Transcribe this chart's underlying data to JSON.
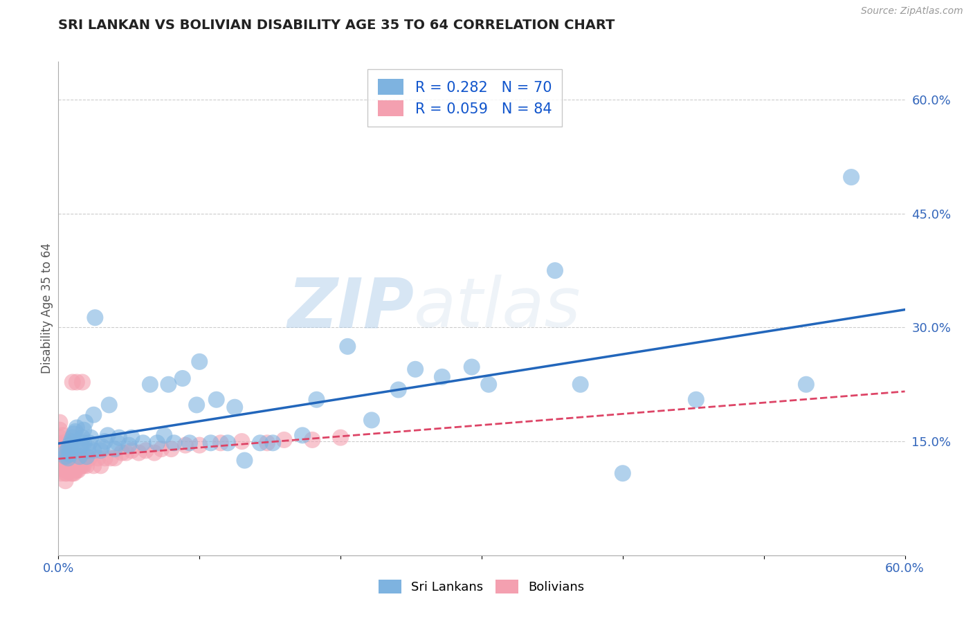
{
  "title": "SRI LANKAN VS BOLIVIAN DISABILITY AGE 35 TO 64 CORRELATION CHART",
  "source": "Source: ZipAtlas.com",
  "ylabel_label": "Disability Age 35 to 64",
  "x_min": 0.0,
  "x_max": 0.6,
  "y_min": 0.0,
  "y_max": 0.65,
  "y_ticks": [
    0.15,
    0.3,
    0.45,
    0.6
  ],
  "y_tick_labels": [
    "15.0%",
    "30.0%",
    "45.0%",
    "60.0%"
  ],
  "x_ticks": [
    0.0,
    0.1,
    0.2,
    0.3,
    0.4,
    0.5,
    0.6
  ],
  "x_tick_labels": [
    "0.0%",
    "",
    "",
    "",
    "",
    "",
    "60.0%"
  ],
  "sri_lankan_color": "#7EB3E0",
  "bolivian_color": "#F4A0B0",
  "sri_lankan_line_color": "#2266BB",
  "bolivian_line_color": "#DD4466",
  "background_color": "#FFFFFF",
  "grid_color": "#CCCCCC",
  "watermark_zip": "ZIP",
  "watermark_atlas": "atlas",
  "R_sri": 0.282,
  "N_sri": 70,
  "R_bol": 0.059,
  "N_bol": 84,
  "sri_lankan_x": [
    0.005,
    0.005,
    0.007,
    0.007,
    0.008,
    0.008,
    0.009,
    0.009,
    0.01,
    0.01,
    0.01,
    0.011,
    0.012,
    0.013,
    0.015,
    0.015,
    0.016,
    0.017,
    0.018,
    0.018,
    0.019,
    0.02,
    0.021,
    0.022,
    0.023,
    0.025,
    0.025,
    0.026,
    0.03,
    0.031,
    0.033,
    0.035,
    0.036,
    0.04,
    0.042,
    0.043,
    0.05,
    0.052,
    0.06,
    0.065,
    0.07,
    0.075,
    0.078,
    0.082,
    0.088,
    0.093,
    0.098,
    0.1,
    0.108,
    0.112,
    0.12,
    0.125,
    0.132,
    0.143,
    0.152,
    0.173,
    0.183,
    0.205,
    0.222,
    0.241,
    0.253,
    0.272,
    0.293,
    0.305,
    0.352,
    0.37,
    0.4,
    0.452,
    0.53,
    0.562
  ],
  "sri_lankan_y": [
    0.13,
    0.135,
    0.128,
    0.14,
    0.133,
    0.145,
    0.138,
    0.15,
    0.142,
    0.148,
    0.155,
    0.16,
    0.163,
    0.168,
    0.13,
    0.14,
    0.145,
    0.155,
    0.148,
    0.165,
    0.175,
    0.13,
    0.138,
    0.148,
    0.155,
    0.185,
    0.138,
    0.313,
    0.138,
    0.143,
    0.15,
    0.158,
    0.198,
    0.14,
    0.148,
    0.155,
    0.145,
    0.155,
    0.148,
    0.225,
    0.148,
    0.158,
    0.225,
    0.148,
    0.233,
    0.148,
    0.198,
    0.255,
    0.148,
    0.205,
    0.148,
    0.195,
    0.125,
    0.148,
    0.148,
    0.158,
    0.205,
    0.275,
    0.178,
    0.218,
    0.245,
    0.235,
    0.248,
    0.225,
    0.375,
    0.225,
    0.108,
    0.205,
    0.225,
    0.498
  ],
  "bolivian_x": [
    0.001,
    0.001,
    0.001,
    0.001,
    0.001,
    0.001,
    0.002,
    0.002,
    0.002,
    0.002,
    0.002,
    0.002,
    0.003,
    0.003,
    0.003,
    0.003,
    0.003,
    0.004,
    0.004,
    0.004,
    0.005,
    0.005,
    0.005,
    0.005,
    0.005,
    0.005,
    0.006,
    0.006,
    0.006,
    0.006,
    0.007,
    0.007,
    0.007,
    0.008,
    0.008,
    0.009,
    0.009,
    0.009,
    0.009,
    0.01,
    0.01,
    0.01,
    0.01,
    0.01,
    0.01,
    0.011,
    0.011,
    0.012,
    0.012,
    0.012,
    0.013,
    0.013,
    0.014,
    0.014,
    0.015,
    0.016,
    0.017,
    0.017,
    0.018,
    0.019,
    0.02,
    0.022,
    0.025,
    0.028,
    0.03,
    0.033,
    0.037,
    0.04,
    0.045,
    0.048,
    0.052,
    0.057,
    0.062,
    0.068,
    0.073,
    0.08,
    0.09,
    0.1,
    0.115,
    0.13,
    0.148,
    0.16,
    0.18,
    0.2
  ],
  "bolivian_y": [
    0.12,
    0.135,
    0.145,
    0.155,
    0.165,
    0.175,
    0.12,
    0.13,
    0.138,
    0.145,
    0.115,
    0.108,
    0.118,
    0.128,
    0.138,
    0.148,
    0.158,
    0.122,
    0.13,
    0.14,
    0.112,
    0.118,
    0.098,
    0.108,
    0.118,
    0.125,
    0.108,
    0.118,
    0.112,
    0.118,
    0.112,
    0.118,
    0.125,
    0.118,
    0.112,
    0.118,
    0.108,
    0.118,
    0.128,
    0.112,
    0.118,
    0.125,
    0.132,
    0.108,
    0.228,
    0.108,
    0.118,
    0.122,
    0.112,
    0.118,
    0.112,
    0.228,
    0.118,
    0.112,
    0.125,
    0.118,
    0.118,
    0.228,
    0.118,
    0.128,
    0.118,
    0.128,
    0.118,
    0.128,
    0.118,
    0.128,
    0.128,
    0.128,
    0.135,
    0.135,
    0.138,
    0.135,
    0.138,
    0.135,
    0.14,
    0.14,
    0.145,
    0.145,
    0.148,
    0.15,
    0.148,
    0.152,
    0.152,
    0.155
  ]
}
